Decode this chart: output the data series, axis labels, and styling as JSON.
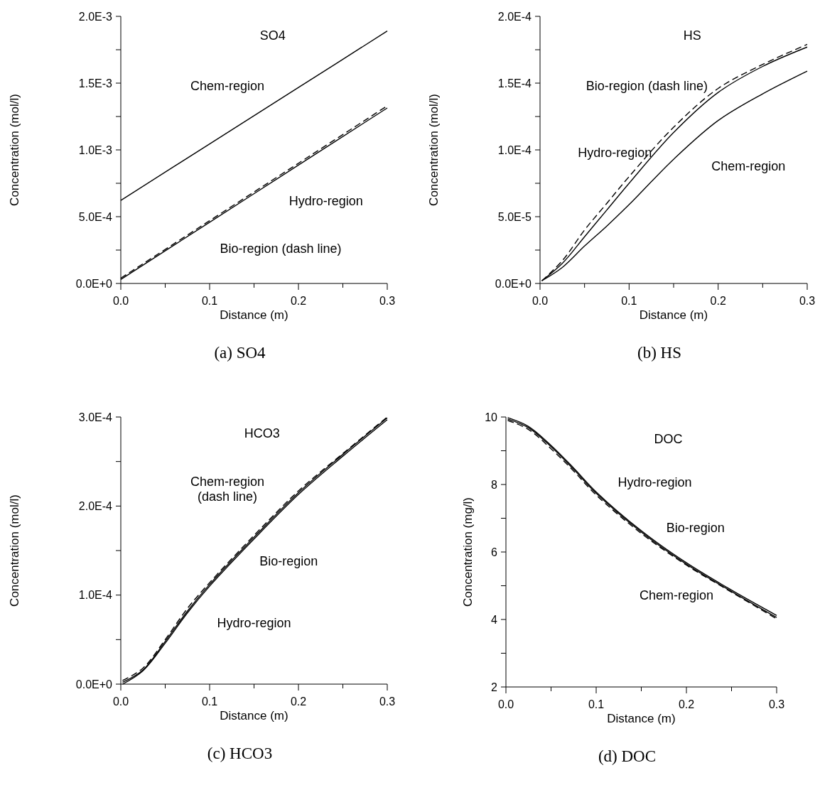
{
  "chart_data": [
    {
      "type": "line",
      "title": "(a) SO4",
      "xlabel": "Distance (m)",
      "ylabel": "Concentration (mol/l)",
      "xlim": [
        0,
        0.3
      ],
      "ylim": [
        0,
        0.002
      ],
      "xticks": [
        {
          "value": 0,
          "label": "0.0"
        },
        {
          "value": 0.05,
          "label": null
        },
        {
          "value": 0.1,
          "label": "0.1"
        },
        {
          "value": 0.15,
          "label": null
        },
        {
          "value": 0.2,
          "label": "0.2"
        },
        {
          "value": 0.25,
          "label": null
        },
        {
          "value": 0.3,
          "label": "0.3"
        }
      ],
      "yticks": [
        {
          "value": 0,
          "label": "0.0E+0"
        },
        {
          "value": 0.00025,
          "label": null
        },
        {
          "value": 0.0005,
          "label": "5.0E-4"
        },
        {
          "value": 0.00075,
          "label": null
        },
        {
          "value": 0.001,
          "label": "1.0E-3"
        },
        {
          "value": 0.00125,
          "label": null
        },
        {
          "value": 0.0015,
          "label": "1.5E-3"
        },
        {
          "value": 0.00175,
          "label": null
        },
        {
          "value": 0.002,
          "label": "2.0E-3"
        }
      ],
      "x": [
        0,
        0.1,
        0.2,
        0.3
      ],
      "series": [
        {
          "color": "#000000",
          "line_style": "solid",
          "values": [
            0.000622,
            0.001045,
            0.001467,
            0.00189
          ]
        },
        {
          "color": "#000000",
          "line_style": "solid",
          "values": [
            3e-05,
            0.000458,
            0.000886,
            0.001314
          ]
        },
        {
          "color": "#000000",
          "line_style": "dashed",
          "values": [
            4e-05,
            0.00047,
            0.0009,
            0.00133
          ]
        }
      ],
      "annotations": [
        "SO4",
        "Chem-region",
        "Hydro-region",
        "Bio-region (dash line)"
      ]
    },
    {
      "type": "line",
      "title": "(b) HS",
      "xlabel": "Distance (m)",
      "ylabel": "Concentration (mol/l)",
      "xlim": [
        0,
        0.3
      ],
      "ylim": [
        0,
        0.0002
      ],
      "xticks": [
        {
          "value": 0,
          "label": "0.0"
        },
        {
          "value": 0.05,
          "label": null
        },
        {
          "value": 0.1,
          "label": "0.1"
        },
        {
          "value": 0.15,
          "label": null
        },
        {
          "value": 0.2,
          "label": "0.2"
        },
        {
          "value": 0.25,
          "label": null
        },
        {
          "value": 0.3,
          "label": "0.3"
        }
      ],
      "yticks": [
        {
          "value": 0,
          "label": "0.0E+0"
        },
        {
          "value": 2.5e-05,
          "label": null
        },
        {
          "value": 5e-05,
          "label": "5.0E-5"
        },
        {
          "value": 7.5e-05,
          "label": null
        },
        {
          "value": 0.0001,
          "label": "1.0E-4"
        },
        {
          "value": 0.000125,
          "label": null
        },
        {
          "value": 0.00015,
          "label": "1.5E-4"
        },
        {
          "value": 0.000175,
          "label": null
        },
        {
          "value": 0.0002,
          "label": "2.0E-4"
        }
      ],
      "x": [
        0.002,
        0.025,
        0.05,
        0.075,
        0.1,
        0.15,
        0.2,
        0.25,
        0.3
      ],
      "series": [
        {
          "color": "#000000",
          "line_style": "solid",
          "values": [
            2e-06,
            1.5e-05,
            3.5e-05,
            5.5e-05,
            7.5e-05,
            0.000113,
            0.000143,
            0.0001625,
            0.000177
          ]
        },
        {
          "color": "#000000",
          "line_style": "dashed",
          "values": [
            2e-06,
            1.7e-05,
            4e-05,
            6e-05,
            8e-05,
            0.000117,
            0.000146,
            0.000164,
            0.000179
          ]
        },
        {
          "color": "#000000",
          "line_style": "solid",
          "values": [
            2e-06,
            1.2e-05,
            2.8e-05,
            4.3e-05,
            5.9e-05,
            9.3e-05,
            0.000122,
            0.000142,
            0.000159
          ]
        }
      ],
      "annotations": [
        "HS",
        "Bio-region (dash line)",
        "Hydro-region",
        "Chem-region"
      ]
    },
    {
      "type": "line",
      "title": "(c) HCO3",
      "xlabel": "Distance (m)",
      "ylabel": "Concentration (mol/l)",
      "xlim": [
        0,
        0.3
      ],
      "ylim": [
        0,
        0.0003
      ],
      "xticks": [
        {
          "value": 0,
          "label": "0.0"
        },
        {
          "value": 0.05,
          "label": null
        },
        {
          "value": 0.1,
          "label": "0.1"
        },
        {
          "value": 0.15,
          "label": null
        },
        {
          "value": 0.2,
          "label": "0.2"
        },
        {
          "value": 0.25,
          "label": null
        },
        {
          "value": 0.3,
          "label": "0.3"
        }
      ],
      "yticks": [
        {
          "value": 0,
          "label": "0.0E+0"
        },
        {
          "value": 5e-05,
          "label": null
        },
        {
          "value": 0.0001,
          "label": "1.0E-4"
        },
        {
          "value": 0.00015,
          "label": null
        },
        {
          "value": 0.0002,
          "label": "2.0E-4"
        },
        {
          "value": 0.00025,
          "label": null
        },
        {
          "value": 0.0003,
          "label": "3.0E-4"
        }
      ],
      "x": [
        0.002,
        0.025,
        0.05,
        0.075,
        0.1,
        0.15,
        0.2,
        0.25,
        0.3
      ],
      "series": [
        {
          "color": "#000000",
          "line_style": "dashed",
          "values": [
            4e-06,
            1.8e-05,
            5e-05,
            8.5e-05,
            0.000114,
            0.000167,
            0.000217,
            0.000259,
            0.0003
          ]
        },
        {
          "color": "#000000",
          "line_style": "solid",
          "values": [
            2e-06,
            1.6e-05,
            4.8e-05,
            8.2e-05,
            0.000112,
            0.000165,
            0.000215,
            0.000258,
            0.000299
          ]
        },
        {
          "color": "#000000",
          "line_style": "solid",
          "values": [
            0,
            1.5e-05,
            4.6e-05,
            8e-05,
            0.00011,
            0.000163,
            0.000213,
            0.000256,
            0.000297
          ]
        }
      ],
      "annotations": [
        "HCO3",
        "Chem-region\n(dash line)",
        "Bio-region",
        "Hydro-region"
      ]
    },
    {
      "type": "line",
      "title": "(d) DOC",
      "xlabel": "Distance (m)",
      "ylabel": "Concentration (mg/l)",
      "xlim": [
        0,
        0.3
      ],
      "ylim": [
        2,
        10
      ],
      "xticks": [
        {
          "value": 0,
          "label": "0.0"
        },
        {
          "value": 0.05,
          "label": null
        },
        {
          "value": 0.1,
          "label": "0.1"
        },
        {
          "value": 0.15,
          "label": null
        },
        {
          "value": 0.2,
          "label": "0.2"
        },
        {
          "value": 0.25,
          "label": null
        },
        {
          "value": 0.3,
          "label": "0.3"
        }
      ],
      "yticks": [
        2,
        {
          "value": 3,
          "label": null
        },
        4,
        {
          "value": 5,
          "label": null
        },
        6,
        {
          "value": 7,
          "label": null
        },
        8,
        {
          "value": 9,
          "label": null
        },
        10
      ],
      "x": [
        0.002,
        0.025,
        0.05,
        0.075,
        0.1,
        0.15,
        0.2,
        0.25,
        0.3
      ],
      "series": [
        {
          "color": "#000000",
          "line_style": "solid",
          "values": [
            9.98,
            9.72,
            9.16,
            8.49,
            7.78,
            6.63,
            5.68,
            4.87,
            4.12
          ]
        },
        {
          "color": "#000000",
          "line_style": "solid",
          "values": [
            9.94,
            9.68,
            9.12,
            8.45,
            7.74,
            6.59,
            5.64,
            4.83,
            4.06
          ]
        },
        {
          "color": "#000000",
          "line_style": "dashed",
          "values": [
            9.9,
            9.63,
            9.06,
            8.4,
            7.69,
            6.55,
            5.61,
            4.81,
            4.02
          ]
        }
      ],
      "annotations": [
        "DOC",
        "Hydro-region",
        "Bio-region",
        "Chem-region"
      ]
    }
  ]
}
